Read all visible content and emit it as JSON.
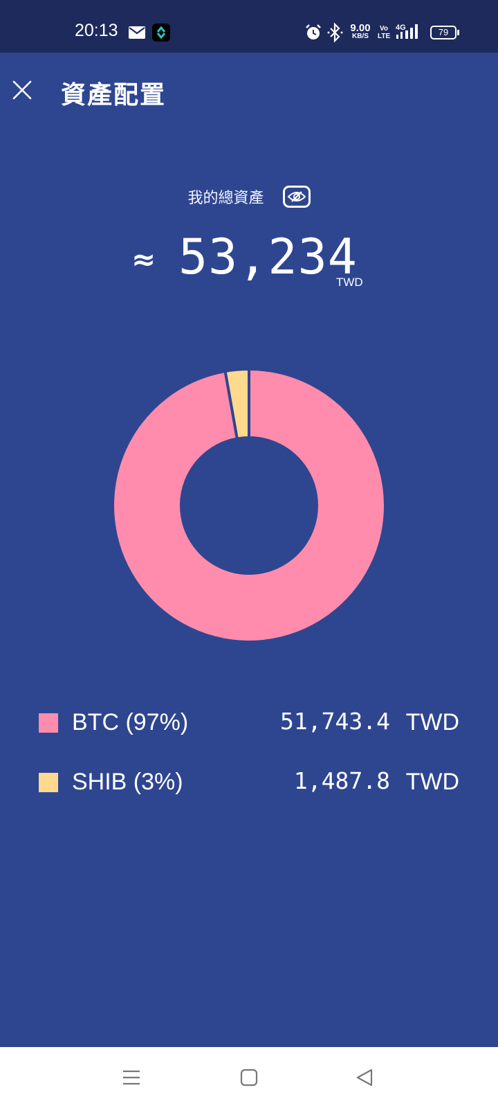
{
  "status_bar": {
    "time": "20:13",
    "net_speed_value": "9.00",
    "net_speed_unit": "KB/S",
    "volte_top": "Vo",
    "volte_bottom": "LTE",
    "battery": "79",
    "icons": [
      "mail-icon",
      "app-icon",
      "alarm-icon",
      "bluetooth-icon",
      "signal-icon",
      "battery-icon"
    ]
  },
  "header": {
    "title": "資產配置",
    "close_icon": "close-icon"
  },
  "summary": {
    "label": "我的總資產",
    "approx": "≈",
    "total": "53,234",
    "unit": "TWD"
  },
  "chart_data": {
    "type": "pie",
    "categories": [
      "BTC",
      "SHIB"
    ],
    "values": [
      51743.4,
      1487.8
    ],
    "colors": [
      "#ff8cad",
      "#ffd98e"
    ],
    "donut": true
  },
  "legend": [
    {
      "label": "BTC (97%)",
      "value": "51,743.4",
      "unit": "TWD",
      "color": "#ff8cad"
    },
    {
      "label": "SHIB (3%)",
      "value": "1,487.8",
      "unit": "TWD",
      "color": "#ffd98e"
    }
  ],
  "nav": {
    "icons": [
      "menu-icon",
      "home-icon",
      "back-icon"
    ]
  },
  "colors": {
    "background": "#2e4690",
    "status_bar": "#1d2a5b",
    "nav_bar": "#ffffff"
  }
}
